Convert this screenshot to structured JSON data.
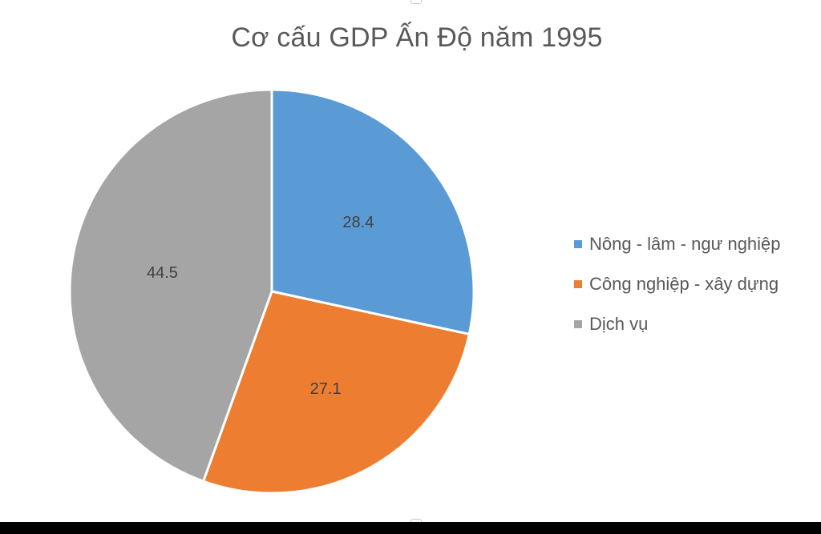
{
  "chart_data": {
    "type": "pie",
    "title": "Cơ cấu GDP Ấn Độ năm 1995",
    "slices": [
      {
        "label": "Nông - lâm - ngư nghiệp",
        "value": 28.4,
        "color": "#5B9BD5"
      },
      {
        "label": "Công nghiệp - xây dựng",
        "value": 27.1,
        "color": "#ED7D31"
      },
      {
        "label": "Dịch vụ",
        "value": 44.5,
        "color": "#A5A5A5"
      }
    ],
    "legend_position": "right",
    "start_angle": "12 o'clock",
    "direction": "clockwise",
    "slice_border_color": "#FFFFFF"
  }
}
